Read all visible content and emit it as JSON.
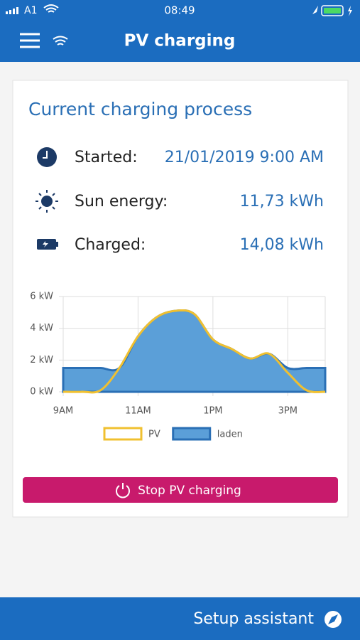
{
  "status_bar": {
    "carrier": "A1",
    "time": "08:49"
  },
  "header": {
    "title": "PV charging"
  },
  "card": {
    "title": "Current charging process",
    "rows": [
      {
        "label": "Started:",
        "value": "21/01/2019 9:00 AM"
      },
      {
        "label": "Sun energy:",
        "value": "11,73 kWh"
      },
      {
        "label": "Charged:",
        "value": "14,08 kWh"
      }
    ],
    "button": "Stop PV charging"
  },
  "chart_data": {
    "type": "line",
    "x": [
      9,
      9.5,
      10,
      10.5,
      11,
      11.5,
      12,
      12.5,
      13,
      13.5,
      14,
      14.5,
      15,
      15.5,
      16
    ],
    "series": [
      {
        "name": "PV",
        "color": "#f0c030",
        "values": [
          0,
          0,
          0.1,
          1.5,
          3.5,
          4.7,
          5.1,
          4.9,
          3.3,
          2.7,
          2.1,
          2.4,
          1.2,
          0.1,
          0
        ]
      },
      {
        "name": "laden",
        "color": "#2a6fb5",
        "fill": "#5b9fd8",
        "values": [
          1.5,
          1.5,
          1.5,
          1.5,
          3.5,
          4.7,
          5.1,
          4.9,
          3.3,
          2.7,
          2.1,
          2.4,
          1.5,
          1.5,
          1.5
        ]
      }
    ],
    "xlim": [
      9,
      16
    ],
    "xticks": [
      {
        "value": 9,
        "label": "9AM"
      },
      {
        "value": 11,
        "label": "11AM"
      },
      {
        "value": 13,
        "label": "1PM"
      },
      {
        "value": 15,
        "label": "3PM"
      }
    ],
    "ylim": [
      0,
      6
    ],
    "yticks": [
      {
        "value": 0,
        "label": "0 kW"
      },
      {
        "value": 2,
        "label": "2 kW"
      },
      {
        "value": 4,
        "label": "4 kW"
      },
      {
        "value": 6,
        "label": "6 kW"
      }
    ],
    "grid": true
  },
  "footer": {
    "label": "Setup assistant"
  }
}
